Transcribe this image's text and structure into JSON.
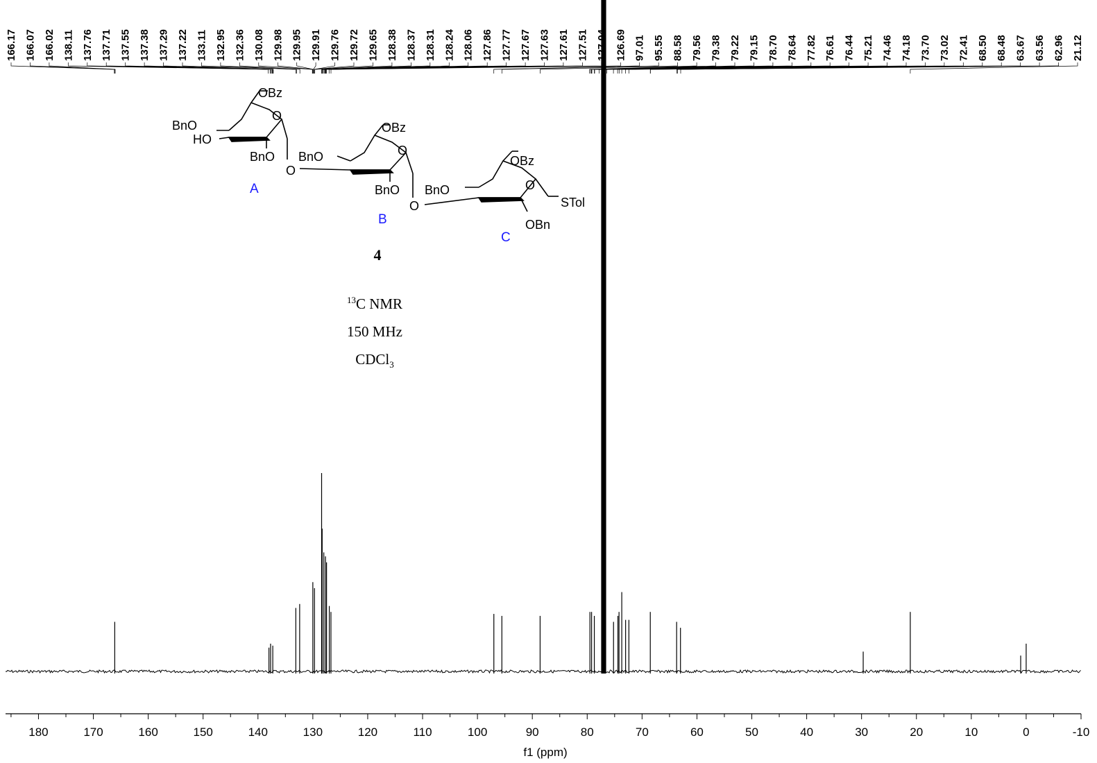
{
  "chart_data": {
    "type": "line",
    "xlabel": "f1 (ppm)",
    "ylabel": "",
    "xlim": [
      186,
      -10
    ],
    "x_ticks": [
      "180",
      "170",
      "160",
      "150",
      "140",
      "130",
      "120",
      "110",
      "100",
      "90",
      "80",
      "70",
      "60",
      "50",
      "40",
      "30",
      "20",
      "10",
      "0",
      "-10"
    ],
    "peak_labels": [
      "166.17",
      "166.07",
      "166.02",
      "138.11",
      "137.76",
      "137.71",
      "137.55",
      "137.38",
      "137.29",
      "137.22",
      "133.11",
      "132.95",
      "132.36",
      "130.08",
      "129.98",
      "129.95",
      "129.91",
      "129.76",
      "129.72",
      "129.65",
      "128.38",
      "128.37",
      "128.31",
      "128.24",
      "128.06",
      "127.86",
      "127.77",
      "127.67",
      "127.63",
      "127.61",
      "127.51",
      "127.04",
      "126.69",
      "97.01",
      "95.55",
      "88.58",
      "79.56",
      "79.38",
      "79.22",
      "79.15",
      "78.70",
      "78.64",
      "77.82",
      "76.61",
      "76.44",
      "75.21",
      "74.46",
      "74.18",
      "73.70",
      "73.02",
      "72.41",
      "68.50",
      "68.48",
      "63.67",
      "63.56",
      "62.96",
      "21.12"
    ],
    "peaks": [
      {
        "x": 166.1,
        "h": 0.25
      },
      {
        "x": 138.0,
        "h": 0.12
      },
      {
        "x": 137.7,
        "h": 0.14
      },
      {
        "x": 137.3,
        "h": 0.13
      },
      {
        "x": 133.1,
        "h": 0.32
      },
      {
        "x": 132.4,
        "h": 0.34
      },
      {
        "x": 130.0,
        "h": 0.45
      },
      {
        "x": 129.7,
        "h": 0.42
      },
      {
        "x": 128.4,
        "h": 1.0
      },
      {
        "x": 128.3,
        "h": 0.72
      },
      {
        "x": 128.0,
        "h": 0.6
      },
      {
        "x": 127.7,
        "h": 0.58
      },
      {
        "x": 127.5,
        "h": 0.55
      },
      {
        "x": 127.0,
        "h": 0.33
      },
      {
        "x": 126.7,
        "h": 0.3
      },
      {
        "x": 97.01,
        "h": 0.29
      },
      {
        "x": 95.55,
        "h": 0.28
      },
      {
        "x": 88.58,
        "h": 0.28
      },
      {
        "x": 79.5,
        "h": 0.3
      },
      {
        "x": 79.2,
        "h": 0.3
      },
      {
        "x": 78.7,
        "h": 0.28
      },
      {
        "x": 77.2,
        "h": 4.5
      },
      {
        "x": 77.0,
        "h": 4.5
      },
      {
        "x": 76.8,
        "h": 4.5
      },
      {
        "x": 75.2,
        "h": 0.25
      },
      {
        "x": 74.4,
        "h": 0.28
      },
      {
        "x": 74.2,
        "h": 0.3
      },
      {
        "x": 73.7,
        "h": 0.4
      },
      {
        "x": 73.0,
        "h": 0.26
      },
      {
        "x": 72.4,
        "h": 0.26
      },
      {
        "x": 68.5,
        "h": 0.3
      },
      {
        "x": 63.7,
        "h": 0.25
      },
      {
        "x": 63.0,
        "h": 0.22
      },
      {
        "x": 29.7,
        "h": 0.1
      },
      {
        "x": 21.12,
        "h": 0.3
      },
      {
        "x": 1.0,
        "h": 0.08
      },
      {
        "x": 0.0,
        "h": 0.14
      }
    ]
  },
  "annotations": {
    "compound_number": "4",
    "nmr_nucleus_sup": "13",
    "nmr_nucleus": "C NMR",
    "frequency": "150 MHz",
    "solvent_main": "CDCl",
    "solvent_sub": "3",
    "ring_labels": [
      "A",
      "B",
      "C"
    ],
    "substituents": {
      "ring_a": [
        "OBz",
        "BnO",
        "HO",
        "BnO",
        "O"
      ],
      "ring_b": [
        "OBz",
        "BnO",
        "O",
        "BnO",
        "O"
      ],
      "ring_c": [
        "OBz",
        "BnO",
        "O",
        "STol",
        "OBn",
        "O"
      ]
    }
  }
}
